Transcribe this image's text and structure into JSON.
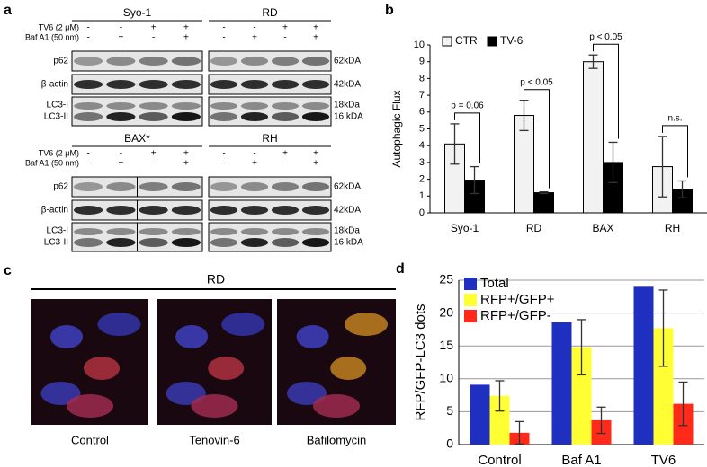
{
  "panel_labels": [
    "a",
    "b",
    "c",
    "d"
  ],
  "blots": {
    "treatments": [
      "TV6 (2 μM)",
      "Baf A1 (50 nm)"
    ],
    "signs": [
      [
        "-",
        "-",
        "+",
        "+"
      ],
      [
        "-",
        "+",
        "-",
        "+"
      ]
    ],
    "titles": [
      "Syo-1",
      "RD",
      "BAX*",
      "RH"
    ],
    "rows": [
      "p62",
      "β-actin",
      "LC3-I",
      "LC3-II"
    ],
    "sizes": [
      "62kDA",
      "42kDA",
      "18kDa",
      "16 kDA"
    ]
  },
  "micrographs": {
    "title": "RD",
    "labels": [
      "Control",
      "Tenovin-6",
      "Bafilomycin"
    ]
  },
  "chart_data": [
    {
      "type": "bar",
      "ylabel": "Autophagic Flux",
      "categories": [
        "Syo-1",
        "RD",
        "BAX",
        "RH"
      ],
      "series": [
        {
          "name": "CTR",
          "color": "#f2f2f2",
          "values": [
            4.1,
            5.8,
            9.0,
            2.75
          ],
          "errors": [
            1.2,
            0.9,
            0.4,
            1.8
          ]
        },
        {
          "name": "TV-6",
          "color": "#000000",
          "values": [
            1.95,
            1.2,
            3.0,
            1.4
          ],
          "errors": [
            0.8,
            0.05,
            1.2,
            0.5
          ]
        }
      ],
      "annotations": [
        "p = 0.06",
        "p < 0.05",
        "p < 0.05",
        "n.s."
      ],
      "ylim": [
        0,
        10
      ],
      "yticks": [
        0,
        1,
        2,
        3,
        4,
        5,
        6,
        7,
        8,
        9,
        10
      ],
      "grid": false,
      "legend": "top-left"
    },
    {
      "type": "bar",
      "ylabel": "RFP/GFP-LC3 dots",
      "categories": [
        "Control",
        "Baf A1",
        "TV6"
      ],
      "series": [
        {
          "name": "Total",
          "color": "#1f2fbf",
          "values": [
            9.1,
            18.6,
            24.0
          ]
        },
        {
          "name": "RFP+/GFP+",
          "color": "#ffff33",
          "values": [
            7.4,
            14.8,
            17.7
          ],
          "errors": [
            2.3,
            4.2,
            5.8
          ]
        },
        {
          "name": "RFP+/GFP-",
          "color": "#ff2a1a",
          "values": [
            1.8,
            3.7,
            6.2
          ],
          "errors": [
            1.7,
            2.0,
            3.3
          ]
        }
      ],
      "ylim": [
        0,
        25
      ],
      "yticks": [
        0,
        5,
        10,
        15,
        20,
        25
      ],
      "grid": true,
      "legend": "top-left"
    }
  ]
}
